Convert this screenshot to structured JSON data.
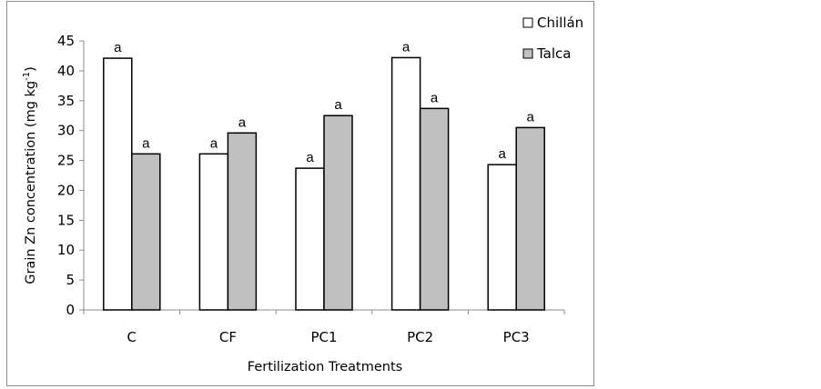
{
  "chart_data": {
    "type": "bar",
    "title": "",
    "xlabel": "Fertilization Treatments",
    "ylabel": "Grain Zn concentration (mg kg",
    "ylabel_superscript": "-1",
    "ylabel_suffix": ")",
    "ylim": [
      0,
      45
    ],
    "yticks": [
      0,
      5,
      10,
      15,
      20,
      25,
      30,
      35,
      40,
      45
    ],
    "grid": false,
    "legend_position": "top-right",
    "categories": [
      "C",
      "CF",
      "PC1",
      "PC2",
      "PC3"
    ],
    "series": [
      {
        "name": "Chillán",
        "color": "#ffffff",
        "values": [
          42.1,
          26.1,
          23.7,
          42.2,
          24.3
        ],
        "labels": [
          "a",
          "a",
          "a",
          "a",
          "a"
        ]
      },
      {
        "name": "Talca",
        "color": "#c0c0c0",
        "values": [
          26.1,
          29.6,
          32.5,
          33.7,
          30.5
        ],
        "labels": [
          "a",
          "a",
          "a",
          "a",
          "a"
        ]
      }
    ]
  }
}
